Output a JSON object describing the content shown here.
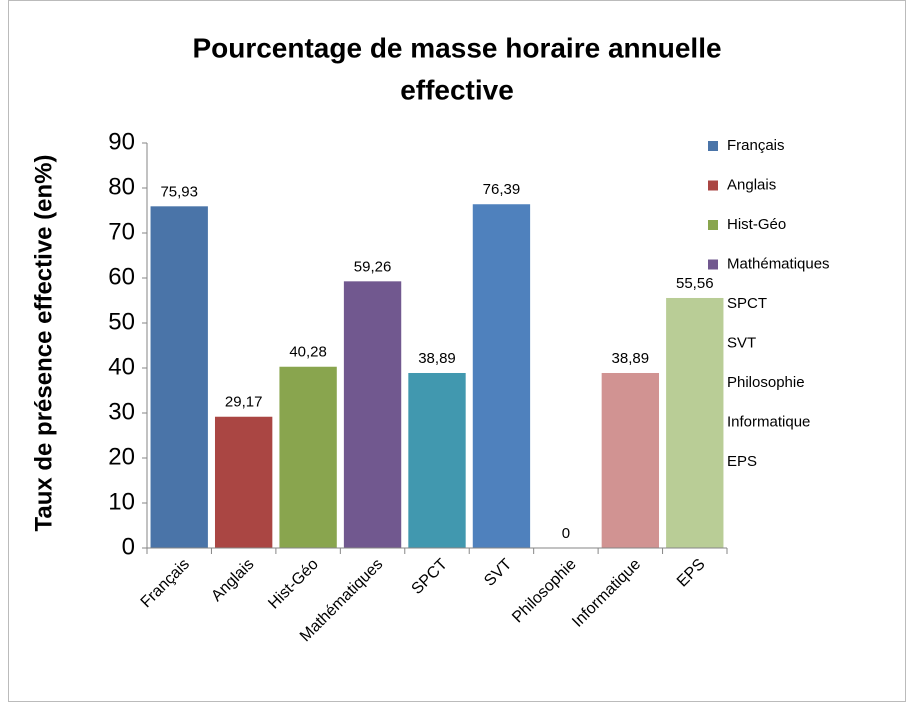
{
  "chart_data": {
    "type": "bar",
    "title": [
      "Pourcentage de masse horaire annuelle",
      "effective"
    ],
    "ylabel": "Taux de présence effective (en%)",
    "categories": [
      "Français",
      "Anglais",
      "Hist-Géo",
      "Mathématiques",
      "SPCT",
      "SVT",
      "Philosophie",
      "Informatique",
      "EPS"
    ],
    "values": [
      75.93,
      29.17,
      40.28,
      59.26,
      38.89,
      76.39,
      0,
      38.89,
      55.56
    ],
    "value_labels": [
      "75,93",
      "29,17",
      "40,28",
      "59,26",
      "38,89",
      "76,39",
      "0",
      "38,89",
      "55,56"
    ],
    "colors": [
      "#4a74a8",
      "#aa4643",
      "#89a54e",
      "#71588f",
      "#4198af",
      "#4f81bd",
      "#93a9cf",
      "#d19392",
      "#b9cd96"
    ],
    "ylim": [
      0,
      90
    ],
    "yticks": [
      0,
      10,
      20,
      30,
      40,
      50,
      60,
      70,
      80,
      90
    ],
    "grid": false,
    "legend": "right"
  }
}
